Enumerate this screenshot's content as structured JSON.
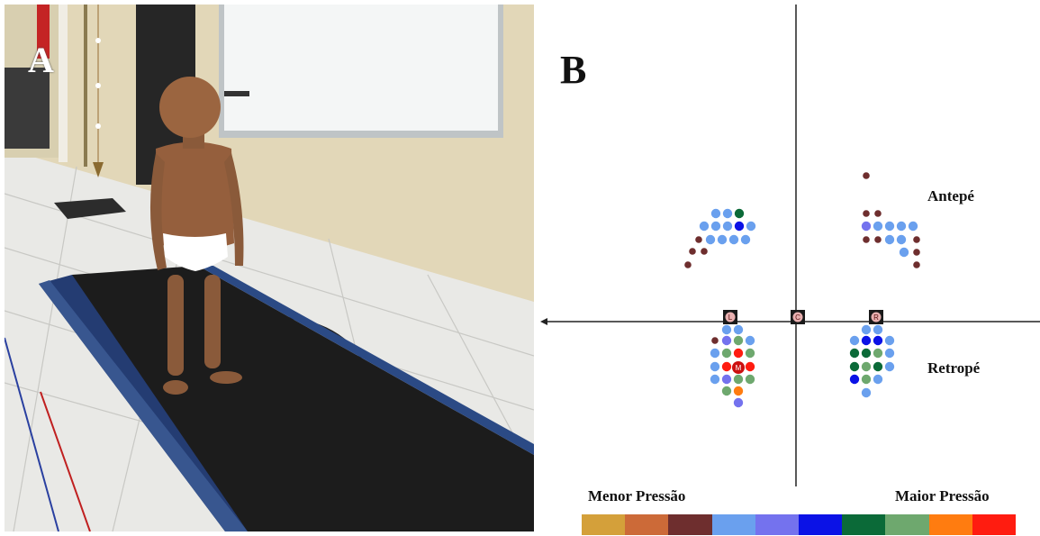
{
  "panel_a": {
    "label": "A"
  },
  "panel_b": {
    "label": "B",
    "regions": {
      "forefoot": "Antepé",
      "rearfoot": "Retropé"
    },
    "markers": {
      "left": "L",
      "center": "C",
      "right": "R",
      "max": "M"
    },
    "scale": {
      "low_label": "Menor Pressão",
      "high_label": "Maior Pressão",
      "colors": [
        "#d4a03a",
        "#cc6a38",
        "#6e2e2e",
        "#6aa0ee",
        "#7472ee",
        "#0b12e6",
        "#0b6a38",
        "#6ea86e",
        "#ff7c10",
        "#ff1c10"
      ]
    }
  }
}
